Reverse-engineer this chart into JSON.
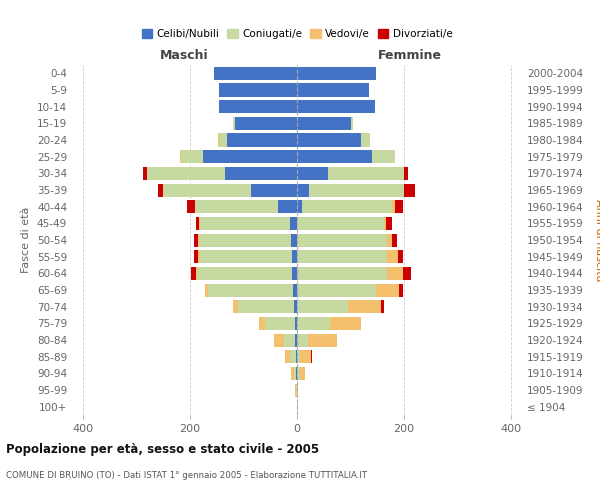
{
  "age_groups": [
    "100+",
    "95-99",
    "90-94",
    "85-89",
    "80-84",
    "75-79",
    "70-74",
    "65-69",
    "60-64",
    "55-59",
    "50-54",
    "45-49",
    "40-44",
    "35-39",
    "30-34",
    "25-29",
    "20-24",
    "15-19",
    "10-14",
    "5-9",
    "0-4"
  ],
  "birth_years": [
    "≤ 1904",
    "1905-1909",
    "1910-1914",
    "1915-1919",
    "1920-1924",
    "1925-1929",
    "1930-1934",
    "1935-1939",
    "1940-1944",
    "1945-1949",
    "1950-1954",
    "1955-1959",
    "1960-1964",
    "1965-1969",
    "1970-1974",
    "1975-1979",
    "1980-1984",
    "1985-1989",
    "1990-1994",
    "1995-1999",
    "2000-2004"
  ],
  "maschi_celibi": [
    0,
    0,
    1,
    1,
    3,
    4,
    6,
    8,
    9,
    10,
    11,
    13,
    35,
    85,
    135,
    175,
    130,
    115,
    145,
    145,
    155
  ],
  "maschi_coniugati": [
    0,
    2,
    5,
    12,
    22,
    55,
    105,
    158,
    178,
    172,
    172,
    168,
    155,
    165,
    145,
    42,
    16,
    5,
    0,
    0,
    0
  ],
  "maschi_vedovi": [
    0,
    2,
    6,
    9,
    18,
    12,
    8,
    5,
    2,
    2,
    2,
    2,
    0,
    0,
    0,
    2,
    2,
    0,
    0,
    0,
    0
  ],
  "maschi_divorziati": [
    0,
    0,
    0,
    0,
    0,
    0,
    0,
    0,
    8,
    8,
    8,
    6,
    15,
    10,
    8,
    0,
    0,
    0,
    0,
    0,
    0
  ],
  "femmine_nubili": [
    0,
    0,
    0,
    0,
    0,
    0,
    0,
    0,
    0,
    0,
    0,
    0,
    10,
    22,
    58,
    140,
    120,
    100,
    145,
    135,
    148
  ],
  "femmine_coniugate": [
    0,
    0,
    5,
    6,
    20,
    62,
    95,
    148,
    168,
    168,
    168,
    162,
    168,
    178,
    142,
    42,
    16,
    5,
    0,
    0,
    0
  ],
  "femmine_vedove": [
    0,
    2,
    10,
    20,
    55,
    58,
    62,
    42,
    30,
    20,
    10,
    5,
    5,
    0,
    0,
    0,
    0,
    0,
    0,
    0,
    0
  ],
  "femmine_divorziate": [
    0,
    0,
    0,
    2,
    0,
    0,
    5,
    8,
    15,
    10,
    8,
    10,
    15,
    20,
    8,
    0,
    0,
    0,
    0,
    0,
    0
  ],
  "color_celibi": "#4472c4",
  "color_coniugati": "#c5d9a0",
  "color_vedovi": "#f5c06e",
  "color_divorziati": "#cc0000",
  "xlim": 420,
  "xticks": [
    -400,
    -200,
    0,
    200,
    400
  ],
  "xticklabels": [
    "400",
    "200",
    "0",
    "200",
    "400"
  ],
  "legend_labels": [
    "Celibi/Nubili",
    "Coniugati/e",
    "Vedovi/e",
    "Divorziati/e"
  ],
  "maschi_label": "Maschi",
  "femmine_label": "Femmine",
  "ylabel_left": "Fasce di età",
  "ylabel_right": "Anni di nascita",
  "title": "Popolazione per età, sesso e stato civile - 2005",
  "subtitle": "COMUNE DI BRUINO (TO) - Dati ISTAT 1° gennaio 2005 - Elaborazione TUTTITALIA.IT",
  "bg_color": "#ffffff",
  "grid_color": "#cccccc",
  "bar_height": 0.78
}
